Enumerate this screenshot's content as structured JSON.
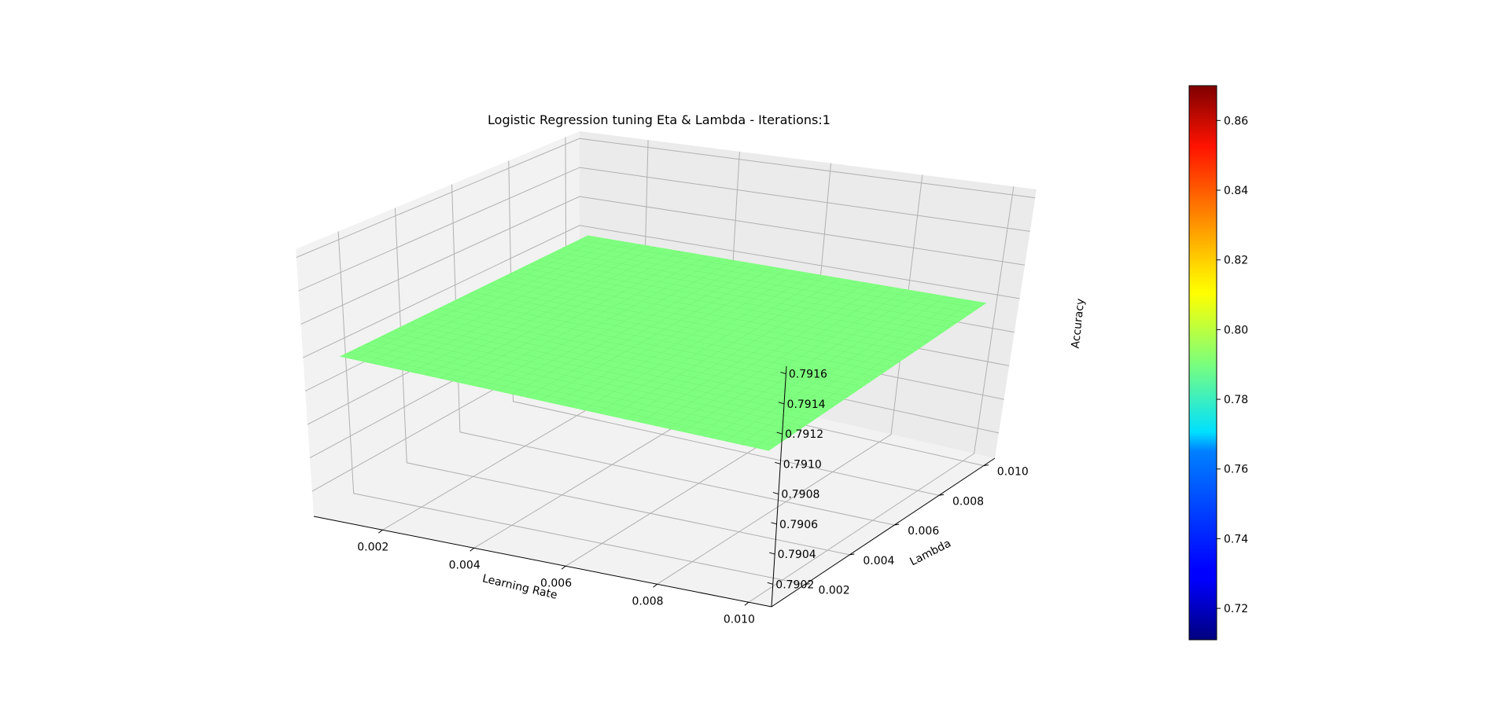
{
  "chart_data": {
    "type": "surface3d",
    "title": "Logistic Regression tuning Eta & Lambda - Iterations:1",
    "xlabel": "Learning Rate",
    "ylabel": "Lambda",
    "zlabel": "Accuracy",
    "x_ticks": [
      "0.002",
      "0.004",
      "0.006",
      "0.008",
      "0.010"
    ],
    "y_ticks": [
      "0.002",
      "0.004",
      "0.006",
      "0.008",
      "0.010"
    ],
    "z_ticks": [
      "0.7902",
      "0.7904",
      "0.7906",
      "0.7908",
      "0.7910",
      "0.7912",
      "0.7914",
      "0.7916"
    ],
    "xlim": [
      0.0005,
      0.0105
    ],
    "ylim": [
      0.0005,
      0.0105
    ],
    "zlim": [
      0.79005,
      0.79165
    ],
    "surface": {
      "x_range": [
        0.001,
        0.01
      ],
      "y_range": [
        0.001,
        0.01
      ],
      "z_value": 0.791,
      "color": "#7fff7f"
    },
    "colorbar": {
      "colormap": "jet",
      "range": [
        0.711,
        0.87
      ],
      "ticks": [
        "0.72",
        "0.74",
        "0.76",
        "0.78",
        "0.80",
        "0.82",
        "0.84",
        "0.86"
      ]
    },
    "grid": true
  }
}
